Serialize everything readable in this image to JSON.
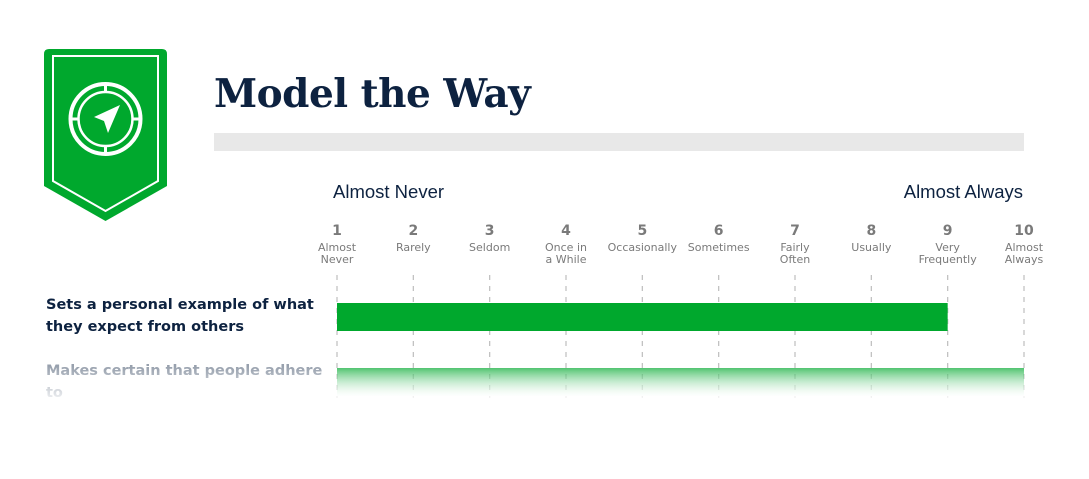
{
  "page": {
    "title": "Model the Way"
  },
  "badge": {
    "icon": "compass-icon",
    "color": "#00a82d"
  },
  "chart_data": {
    "type": "bar",
    "orientation": "horizontal",
    "xlim": [
      1,
      10
    ],
    "scale_low_label": "Almost Never",
    "scale_high_label": "Almost Always",
    "ticks": [
      {
        "value": 1,
        "label": "Almost\nNever"
      },
      {
        "value": 2,
        "label": "Rarely"
      },
      {
        "value": 3,
        "label": "Seldom"
      },
      {
        "value": 4,
        "label": "Once in\na While"
      },
      {
        "value": 5,
        "label": "Occasionally"
      },
      {
        "value": 6,
        "label": "Sometimes"
      },
      {
        "value": 7,
        "label": "Fairly\nOften"
      },
      {
        "value": 8,
        "label": "Usually"
      },
      {
        "value": 9,
        "label": "Very\nFrequently"
      },
      {
        "value": 10,
        "label": "Almost\nAlways"
      }
    ],
    "categories": [
      "Sets a personal example of what\nthey expect from others",
      "Makes certain that people adhere to\nthe principles and standards that"
    ],
    "values": [
      9,
      10
    ],
    "colors": [
      "#00a82d",
      "#00a82d"
    ],
    "grid": true
  }
}
